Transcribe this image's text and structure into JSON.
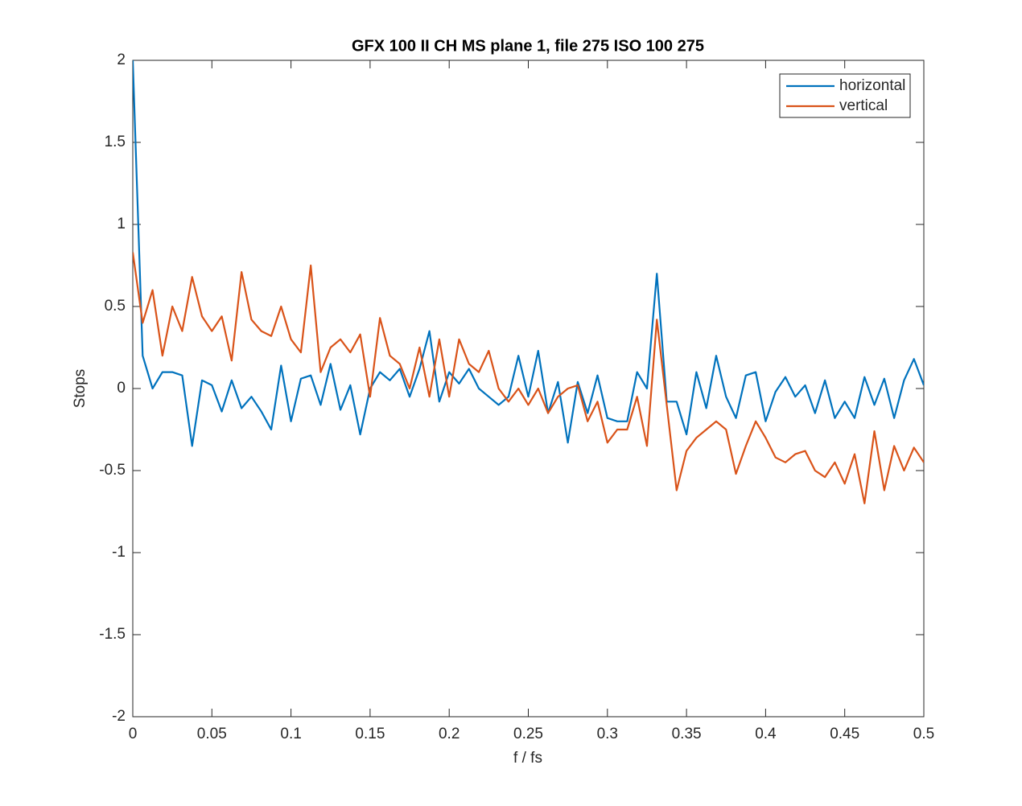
{
  "chart_data": {
    "type": "line",
    "title": "GFX 100 II CH MS plane 1, file 275 ISO 100 275",
    "x_label": "f / fs",
    "y_label": "Stops",
    "x": [
      0,
      0.00625,
      0.0125,
      0.01875,
      0.025,
      0.03125,
      0.0375,
      0.04375,
      0.05,
      0.05625,
      0.0625,
      0.06875,
      0.075,
      0.08125,
      0.0875,
      0.09375,
      0.1,
      0.10625,
      0.1125,
      0.11875,
      0.125,
      0.13125,
      0.1375,
      0.14375,
      0.15,
      0.15625,
      0.1625,
      0.16875,
      0.175,
      0.18125,
      0.1875,
      0.19375,
      0.2,
      0.20625,
      0.2125,
      0.21875,
      0.225,
      0.23125,
      0.2375,
      0.24375,
      0.25,
      0.25625,
      0.2625,
      0.26875,
      0.275,
      0.28125,
      0.2875,
      0.29375,
      0.3,
      0.30625,
      0.3125,
      0.31875,
      0.325,
      0.33125,
      0.3375,
      0.34375,
      0.35,
      0.35625,
      0.3625,
      0.36875,
      0.375,
      0.38125,
      0.3875,
      0.39375,
      0.4,
      0.40625,
      0.4125,
      0.41875,
      0.425,
      0.43125,
      0.4375,
      0.44375,
      0.45,
      0.45625,
      0.4625,
      0.46875,
      0.475,
      0.48125,
      0.4875,
      0.49375,
      0.5
    ],
    "series": [
      {
        "name": "horizontal",
        "color": "#0072bd",
        "values": [
          2.0,
          0.2,
          0.0,
          0.1,
          0.1,
          0.08,
          -0.35,
          0.05,
          0.02,
          -0.14,
          0.05,
          -0.12,
          -0.05,
          -0.14,
          -0.25,
          0.14,
          -0.2,
          0.06,
          0.08,
          -0.1,
          0.15,
          -0.13,
          0.02,
          -0.28,
          0.0,
          0.1,
          0.05,
          0.12,
          -0.05,
          0.12,
          0.35,
          -0.08,
          0.1,
          0.03,
          0.12,
          0.0,
          -0.05,
          -0.1,
          -0.05,
          0.2,
          -0.05,
          0.23,
          -0.15,
          0.04,
          -0.33,
          0.04,
          -0.15,
          0.08,
          -0.18,
          -0.2,
          -0.2,
          0.1,
          0.0,
          0.7,
          -0.08,
          -0.08,
          -0.28,
          0.1,
          -0.12,
          0.2,
          -0.05,
          -0.18,
          0.08,
          0.1,
          -0.2,
          -0.02,
          0.07,
          -0.05,
          0.02,
          -0.15,
          0.05,
          -0.18,
          -0.08,
          -0.18,
          0.07,
          -0.1,
          0.06,
          -0.18,
          0.05,
          0.18,
          0.02
        ]
      },
      {
        "name": "vertical",
        "color": "#d95319",
        "values": [
          0.83,
          0.4,
          0.6,
          0.2,
          0.5,
          0.35,
          0.68,
          0.44,
          0.35,
          0.44,
          0.17,
          0.71,
          0.42,
          0.35,
          0.32,
          0.5,
          0.3,
          0.22,
          0.75,
          0.1,
          0.25,
          0.3,
          0.22,
          0.33,
          -0.05,
          0.43,
          0.2,
          0.15,
          0.0,
          0.25,
          -0.05,
          0.3,
          -0.05,
          0.3,
          0.15,
          0.1,
          0.23,
          0.0,
          -0.08,
          0.0,
          -0.1,
          0.0,
          -0.15,
          -0.05,
          0.0,
          0.02,
          -0.2,
          -0.08,
          -0.33,
          -0.25,
          -0.25,
          -0.05,
          -0.35,
          0.42,
          -0.1,
          -0.62,
          -0.38,
          -0.3,
          -0.25,
          -0.2,
          -0.25,
          -0.52,
          -0.35,
          -0.2,
          -0.3,
          -0.42,
          -0.45,
          -0.4,
          -0.38,
          -0.5,
          -0.54,
          -0.45,
          -0.58,
          -0.4,
          -0.7,
          -0.26,
          -0.62,
          -0.35,
          -0.5,
          -0.36,
          -0.45
        ]
      }
    ],
    "xlim": [
      0,
      0.5
    ],
    "xticks": [
      0,
      0.05,
      0.1,
      0.15,
      0.2,
      0.25,
      0.3,
      0.35,
      0.4,
      0.45,
      0.5
    ],
    "ylim": [
      -2,
      2
    ],
    "yticks": [
      -2,
      -1.5,
      -1,
      -0.5,
      0,
      0.5,
      1,
      1.5,
      2
    ],
    "grid": false,
    "legend": "upper right"
  }
}
